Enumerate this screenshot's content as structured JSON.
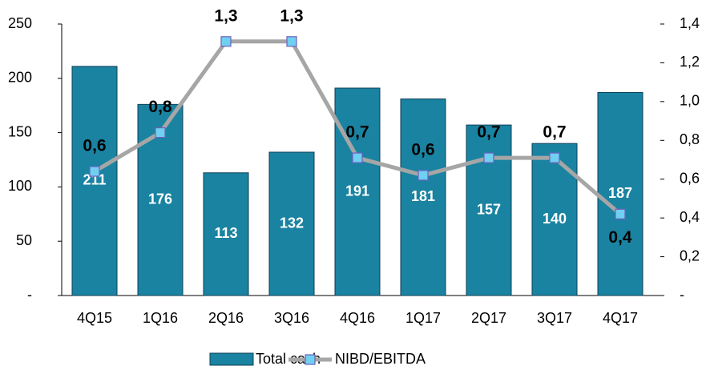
{
  "chart_data": {
    "type": "bar_line",
    "categories": [
      "4Q15",
      "1Q16",
      "2Q16",
      "3Q16",
      "4Q16",
      "1Q17",
      "2Q17",
      "3Q17",
      "4Q17"
    ],
    "series": [
      {
        "name": "Total cash",
        "type": "bar",
        "color": "#1a83a1",
        "values": [
          211,
          176,
          113,
          132,
          191,
          181,
          157,
          140,
          187
        ]
      },
      {
        "name": "NIBD/EBITDA",
        "type": "line",
        "axis": "y2",
        "color": "#a6a6a6",
        "marker_color": "#6fd0f0",
        "values": [
          0.64,
          0.84,
          1.31,
          1.31,
          0.71,
          0.62,
          0.71,
          0.71,
          0.42
        ],
        "value_labels": [
          "0,6",
          "0,8",
          "1,3",
          "1,3",
          "0,7",
          "0,6",
          "0,7",
          "0,7",
          "0,4"
        ]
      }
    ],
    "ylim": [
      0,
      250
    ],
    "yticks": [
      {
        "value": 0,
        "label": "-"
      },
      50,
      100,
      150,
      200,
      250
    ],
    "y2lim": [
      0,
      1.4
    ],
    "y2ticks": [
      {
        "value": 0,
        "label": "-"
      },
      {
        "value": 0.2,
        "label": "0,2"
      },
      {
        "value": 0.4,
        "label": "0,4"
      },
      {
        "value": 0.6,
        "label": "0,6"
      },
      {
        "value": 0.8,
        "label": "0,8"
      },
      {
        "value": 1.0,
        "label": "1,0"
      },
      {
        "value": 1.2,
        "label": "1,2"
      },
      {
        "value": 1.4,
        "label": "1,4"
      }
    ],
    "legend": "bottom"
  }
}
